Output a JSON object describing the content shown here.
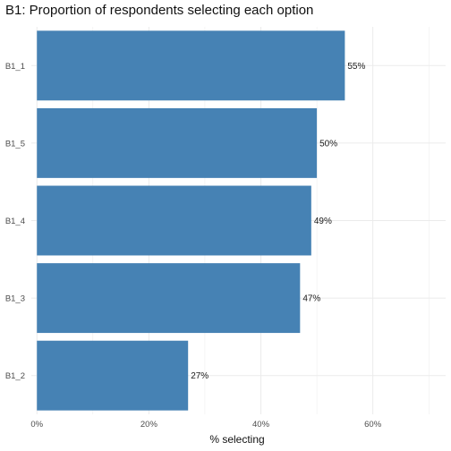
{
  "chart_data": {
    "type": "bar",
    "orientation": "horizontal",
    "title": "B1: Proportion of respondents selecting each option",
    "xlabel": "% selecting",
    "ylabel": "",
    "categories": [
      "B1_1",
      "B1_5",
      "B1_4",
      "B1_3",
      "B1_2"
    ],
    "values": [
      55,
      50,
      49,
      47,
      27
    ],
    "data_labels": [
      "55%",
      "50%",
      "49%",
      "47%",
      "27%"
    ],
    "x_ticks": [
      0,
      20,
      40,
      60
    ],
    "x_tick_labels": [
      "0%",
      "20%",
      "40%",
      "60%"
    ],
    "xlim": [
      -1,
      73
    ],
    "grid": true,
    "legend": "none",
    "bar_color": "#4682B4",
    "grid_color": "#EBEBEB"
  }
}
